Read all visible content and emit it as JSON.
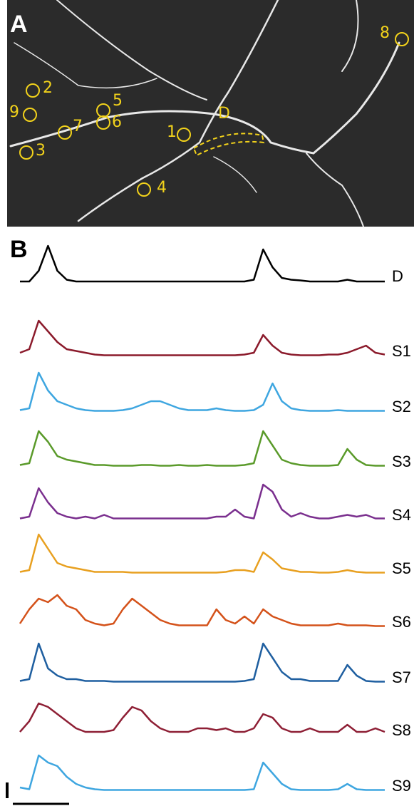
{
  "panel_a": {
    "label": "A",
    "rois": [
      {
        "label": "1"
      },
      {
        "label": "2"
      },
      {
        "label": "3"
      },
      {
        "label": "4"
      },
      {
        "label": "5"
      },
      {
        "label": "6"
      },
      {
        "label": "7"
      },
      {
        "label": "8"
      },
      {
        "label": "9"
      },
      {
        "label": "D"
      }
    ]
  },
  "panel_b": {
    "label": "B",
    "traces": [
      {
        "name": "D",
        "color": "#000000",
        "values": [
          0,
          0,
          3,
          10,
          3,
          0.5,
          0,
          0,
          0,
          0,
          0,
          0,
          0,
          0,
          0,
          0,
          0,
          0,
          0,
          0,
          0,
          0,
          0,
          0,
          0,
          0.5,
          9,
          4,
          1,
          0.5,
          0.3,
          0,
          0,
          0,
          0,
          0.5,
          0,
          0,
          0,
          0
        ]
      },
      {
        "name": "S1",
        "color": "#8b1a2b",
        "values": [
          1,
          2,
          10,
          7,
          4,
          2,
          1.5,
          1,
          0.5,
          0.3,
          0.3,
          0.3,
          0.3,
          0.3,
          0.3,
          0.3,
          0.3,
          0.3,
          0.3,
          0.3,
          0.3,
          0.3,
          0.3,
          0.3,
          0.5,
          1,
          6,
          3,
          1,
          0.5,
          0.3,
          0.3,
          0.3,
          0.5,
          0.5,
          1,
          2,
          3,
          1,
          0.5
        ]
      },
      {
        "name": "S2",
        "color": "#3ea6e0",
        "values": [
          0.5,
          1,
          11,
          6,
          3,
          2,
          1,
          0.5,
          0.3,
          0.3,
          0.3,
          0.5,
          1,
          2,
          3,
          3,
          2,
          1,
          0.5,
          0.5,
          0.5,
          1,
          0.5,
          0.3,
          0.3,
          0.5,
          2,
          8,
          3,
          1,
          0.5,
          0.3,
          0.3,
          0.3,
          0.5,
          0.3,
          0.3,
          0.3,
          0.3,
          0.3
        ]
      },
      {
        "name": "S3",
        "color": "#5a9a2a",
        "values": [
          0.5,
          1,
          10,
          7,
          3,
          2,
          1.5,
          1,
          0.5,
          0.5,
          0.3,
          0.3,
          0.3,
          0.5,
          0.5,
          0.3,
          0.3,
          0.5,
          0.3,
          0.3,
          0.5,
          0.3,
          0.3,
          0.3,
          0.5,
          1,
          10,
          6,
          2,
          1,
          0.5,
          0.3,
          0.3,
          0.3,
          0.5,
          5,
          2,
          0.5,
          0.3,
          0.3
        ]
      },
      {
        "name": "S4",
        "color": "#7a2f8e",
        "values": [
          0.5,
          1,
          9,
          5,
          2,
          1,
          0.5,
          1,
          0.5,
          1.5,
          0.5,
          0.5,
          0.5,
          0.5,
          0.5,
          0.5,
          0.5,
          0.5,
          0.5,
          0.5,
          0.5,
          1,
          1,
          3,
          1,
          0.5,
          10,
          8,
          3,
          1,
          2,
          1,
          0.5,
          0.5,
          1,
          1.5,
          1,
          1.5,
          0.5,
          0.5
        ]
      },
      {
        "name": "S5",
        "color": "#e8a020",
        "values": [
          0.5,
          1,
          11,
          7,
          3,
          2,
          1.5,
          1,
          0.5,
          0.5,
          0.5,
          0.5,
          0.3,
          0.3,
          0.3,
          0.3,
          0.3,
          0.3,
          0.3,
          0.3,
          0.3,
          0.3,
          0.5,
          1,
          1,
          0.5,
          6,
          4,
          1.5,
          1,
          0.5,
          0.5,
          0.3,
          0.3,
          0.5,
          1,
          0.5,
          0.3,
          0.3,
          0.3
        ]
      },
      {
        "name": "S6",
        "color": "#d4521a",
        "values": [
          1,
          5,
          8,
          7,
          9,
          6,
          5,
          2,
          1,
          0.5,
          1,
          5,
          8,
          6,
          4,
          2,
          1,
          0.5,
          0.5,
          0.5,
          0.5,
          5,
          2,
          1,
          3,
          1,
          5,
          3,
          2,
          1,
          0.5,
          0.5,
          0.5,
          0.5,
          1,
          0.5,
          0.5,
          0.5,
          0.3,
          0.3
        ]
      },
      {
        "name": "S7",
        "color": "#1f5fa0",
        "values": [
          0.5,
          1,
          11,
          4,
          2,
          1,
          1,
          0.5,
          0.5,
          0.5,
          0.3,
          0.3,
          0.3,
          0.3,
          0.3,
          0.3,
          0.3,
          0.3,
          0.3,
          0.3,
          0.3,
          0.3,
          0.3,
          0.3,
          0.5,
          1,
          11,
          7,
          3,
          1,
          1,
          0.5,
          0.5,
          0.5,
          0.5,
          5,
          2,
          0.5,
          0.3,
          0.3
        ]
      },
      {
        "name": "S8",
        "color": "#8e1f35",
        "values": [
          1,
          4,
          9,
          8,
          6,
          4,
          2,
          1,
          1,
          1,
          1.5,
          5,
          8,
          7,
          4,
          2,
          1,
          1,
          1,
          2,
          2,
          1.5,
          2,
          1,
          1,
          2,
          6,
          5,
          2,
          1,
          1,
          2,
          1,
          1,
          1,
          3,
          1,
          1,
          2,
          1
        ]
      },
      {
        "name": "S9",
        "color": "#3ea6e0",
        "values": [
          1,
          0.5,
          10,
          8,
          7,
          4,
          2,
          1,
          0.5,
          0.3,
          0.3,
          0.3,
          0.3,
          0.3,
          0.3,
          0.3,
          0.3,
          0.3,
          0.3,
          0.3,
          0.3,
          0.3,
          0.3,
          0.3,
          0.3,
          0.5,
          8,
          5,
          2,
          0.5,
          0.3,
          0.3,
          0.3,
          0.3,
          0.5,
          2,
          0.5,
          0.3,
          0.3,
          0.3
        ]
      }
    ]
  }
}
